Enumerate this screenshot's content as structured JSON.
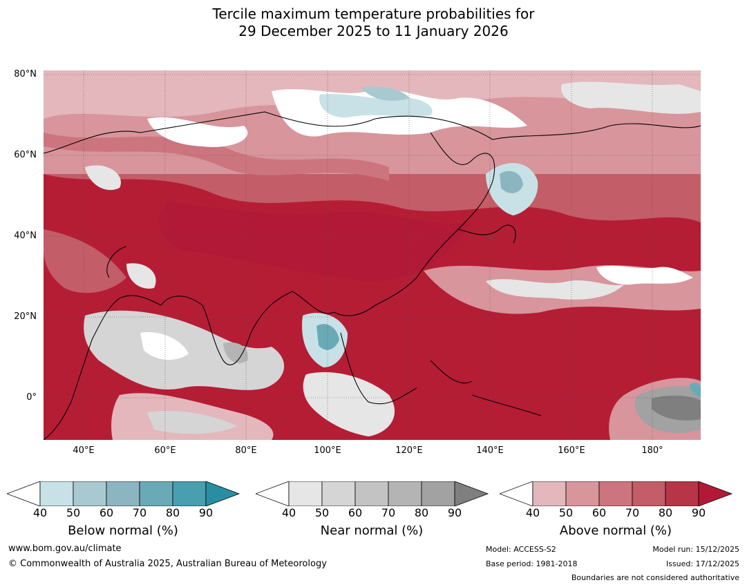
{
  "title": {
    "line1": "Tercile maximum temperature probabilities for",
    "line2": "29 December 2025 to 11 January 2026"
  },
  "map": {
    "lat_labels": [
      "80°N",
      "60°N",
      "40°N",
      "20°N",
      "0°"
    ],
    "lon_labels": [
      "40°E",
      "60°E",
      "80°E",
      "100°E",
      "120°E",
      "140°E",
      "160°E",
      "180°"
    ]
  },
  "colorbars": [
    {
      "name": "Below normal (%)",
      "ticks": [
        "40",
        "50",
        "60",
        "70",
        "80",
        "90"
      ],
      "colors": [
        "#ffffff",
        "#c8e1e6",
        "#a7c9cf",
        "#8bb5c1",
        "#69aab6",
        "#479fb0",
        "#2a8ea3"
      ]
    },
    {
      "name": "Near normal (%)",
      "ticks": [
        "40",
        "50",
        "60",
        "70",
        "80",
        "90"
      ],
      "colors": [
        "#ffffff",
        "#e6e6e6",
        "#d5d5d5",
        "#c3c3c3",
        "#b4b4b4",
        "#a2a2a2",
        "#7f7f7f"
      ]
    },
    {
      "name": "Above normal (%)",
      "ticks": [
        "40",
        "50",
        "60",
        "70",
        "80",
        "90"
      ],
      "colors": [
        "#ffffff",
        "#e3b7bc",
        "#d8959c",
        "#cc757e",
        "#c35d68",
        "#b73547",
        "#b21936"
      ]
    }
  ],
  "footer": {
    "website": "www.bom.gov.au/climate",
    "copyright": "© Commonwealth of Australia 2025, Australian Bureau of Meteorology",
    "model": "Model: ACCESS-S2",
    "base_period": "Base period: 1981-2018",
    "model_run": "Model run: 15/12/2025",
    "issued": "Issued: 17/12/2025",
    "boundaries": "Boundaries are not considered authoritative"
  }
}
